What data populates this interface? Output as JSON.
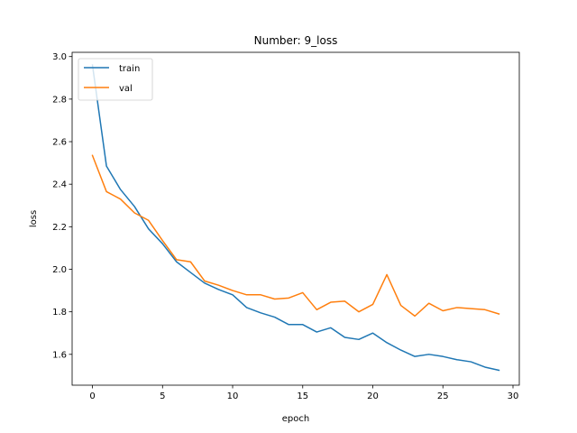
{
  "chart_data": {
    "type": "line",
    "title": "Number: 9_loss",
    "xlabel": "epoch",
    "ylabel": "loss",
    "xlim": [
      -1.45,
      30.45
    ],
    "ylim": [
      1.455,
      3.02
    ],
    "xticks": [
      0,
      5,
      10,
      15,
      20,
      25,
      30
    ],
    "yticks": [
      1.6,
      1.8,
      2.0,
      2.2,
      2.4,
      2.6,
      2.8,
      3.0
    ],
    "grid": false,
    "legend_position": "top-left",
    "x": [
      0,
      1,
      2,
      3,
      4,
      5,
      6,
      7,
      8,
      9,
      10,
      11,
      12,
      13,
      14,
      15,
      16,
      17,
      18,
      19,
      20,
      21,
      22,
      23,
      24,
      25,
      26,
      27,
      28,
      29
    ],
    "series": [
      {
        "name": "train",
        "color": "#1f77b4",
        "values": [
          2.96,
          2.485,
          2.375,
          2.295,
          2.19,
          2.12,
          2.035,
          1.985,
          1.935,
          1.905,
          1.88,
          1.82,
          1.795,
          1.775,
          1.74,
          1.74,
          1.705,
          1.725,
          1.68,
          1.67,
          1.7,
          1.655,
          1.62,
          1.59,
          1.6,
          1.59,
          1.575,
          1.565,
          1.54,
          1.525
        ]
      },
      {
        "name": "val",
        "color": "#ff7f0e",
        "values": [
          2.535,
          2.365,
          2.33,
          2.265,
          2.23,
          2.135,
          2.045,
          2.035,
          1.945,
          1.925,
          1.9,
          1.88,
          1.88,
          1.86,
          1.865,
          1.89,
          1.81,
          1.845,
          1.85,
          1.8,
          1.835,
          1.975,
          1.83,
          1.78,
          1.84,
          1.805,
          1.82,
          1.815,
          1.81,
          1.79
        ]
      }
    ]
  }
}
